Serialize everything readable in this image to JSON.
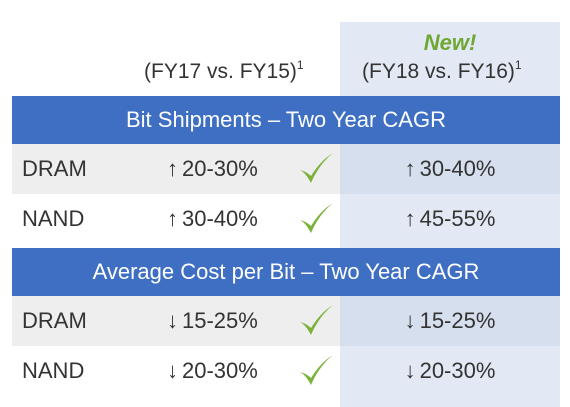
{
  "header": {
    "new_label": "New!",
    "col_left": "(FY17 vs. FY15)",
    "col_left_note": "1",
    "col_right": "(FY18 vs. FY16)",
    "col_right_note": "1"
  },
  "sections": [
    {
      "title": "Bit Shipments – Two Year CAGR",
      "rows": [
        {
          "label": "DRAM",
          "left_arrow": "↑",
          "left_value": "20-30%",
          "right_arrow": "↑",
          "right_value": "30-40%"
        },
        {
          "label": "NAND",
          "left_arrow": "↑",
          "left_value": "30-40%",
          "right_arrow": "↑",
          "right_value": "45-55%"
        }
      ]
    },
    {
      "title": "Average Cost per Bit – Two Year CAGR",
      "rows": [
        {
          "label": "DRAM",
          "left_arrow": "↓",
          "left_value": "15-25%",
          "right_arrow": "↓",
          "right_value": "15-25%"
        },
        {
          "label": "NAND",
          "left_arrow": "↓",
          "left_value": "20-30%",
          "right_arrow": "↓",
          "right_value": "20-30%"
        }
      ]
    }
  ],
  "colors": {
    "band": "#3e6fc2",
    "new_label": "#6ea832",
    "check": "#7ab23a",
    "right_column": "#e3e9f4"
  },
  "icons": {
    "check": "check-mark-icon"
  }
}
